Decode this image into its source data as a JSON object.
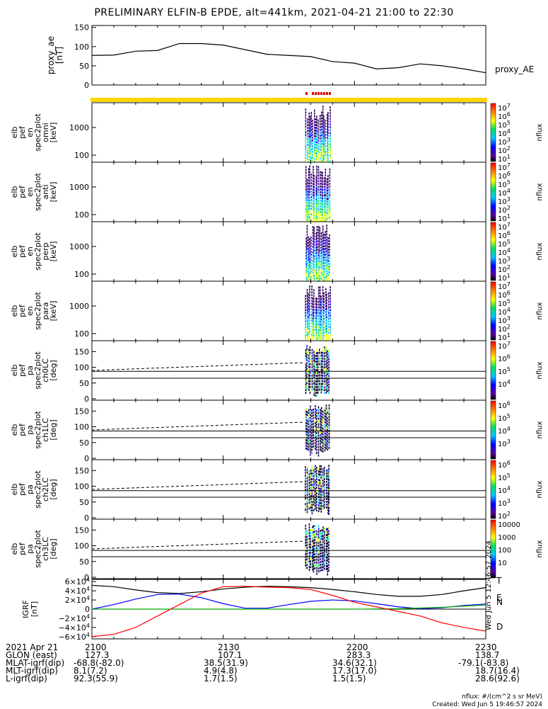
{
  "title": "PRELIMINARY ELFIN-B EPDE, alt=441km, 2021-04-21 21:00 to 22:30",
  "chart_data": [
    {
      "type": "line",
      "ylabel": "proxy_ae [nT]",
      "legend": "proxy_AE",
      "yticks": [
        "150",
        "100",
        "50",
        "0"
      ],
      "ylim": [
        0,
        155
      ],
      "xlim": [
        0,
        90
      ],
      "x": [
        0,
        5,
        10,
        15,
        20,
        25,
        30,
        35,
        40,
        45,
        50,
        55,
        60,
        65,
        70,
        75,
        80,
        85,
        90
      ],
      "values": [
        77,
        78,
        88,
        90,
        108,
        108,
        104,
        92,
        80,
        77,
        74,
        61,
        57,
        42,
        45,
        55,
        50,
        42,
        32
      ]
    },
    {
      "type": "heatmap",
      "ylabel": "elb pef en spec2plot omni [keV]",
      "yticks": [
        "1000",
        "100"
      ],
      "zlabel": "nflux",
      "zrange": [
        "10^1",
        "10^7"
      ]
    },
    {
      "type": "heatmap",
      "ylabel": "elb pef en spec2plot anti [keV]",
      "yticks": [
        "1000",
        "100"
      ],
      "zlabel": "nflux",
      "zrange": [
        "10^1",
        "10^7"
      ]
    },
    {
      "type": "heatmap",
      "ylabel": "elb pef en spec2plot perp [keV]",
      "yticks": [
        "1000",
        "100"
      ],
      "zlabel": "nflux",
      "zrange": [
        "10^1",
        "10^7"
      ]
    },
    {
      "type": "heatmap",
      "ylabel": "elb pef en spec2plot para [keV]",
      "yticks": [
        "1000",
        "100"
      ],
      "zlabel": "nflux",
      "zrange": [
        "10^1",
        "10^7"
      ]
    },
    {
      "type": "heatmap",
      "ylabel": "elb pef pa spec2plot ch0LC [deg]",
      "yticks": [
        "150",
        "100",
        "50",
        "0"
      ],
      "zlabel": "nflux"
    },
    {
      "type": "heatmap",
      "ylabel": "elb pef pa spec2plot ch1LC [deg]",
      "yticks": [
        "150",
        "100",
        "50",
        "0"
      ],
      "zlabel": "nflux"
    },
    {
      "type": "heatmap",
      "ylabel": "elb pef pa spec2plot ch2LC [deg]",
      "yticks": [
        "150",
        "100",
        "50",
        "0"
      ],
      "zlabel": "nflux"
    },
    {
      "type": "heatmap",
      "ylabel": "elb pef pa spec2plot ch3LC [deg]",
      "yticks": [
        "150",
        "100",
        "50",
        "0"
      ],
      "zlabel": "nflux"
    },
    {
      "type": "line",
      "ylabel": "IGRF [nT]",
      "yticks": [
        "6×10^4",
        "4×10^4",
        "2×10^4",
        "0",
        "−2×10^4",
        "−4×10^4",
        "−6×10^4"
      ],
      "ylim": [
        -65000,
        65000
      ],
      "xlim": [
        0,
        90
      ],
      "series": [
        {
          "name": "T",
          "color": "#000000",
          "x": [
            0,
            5,
            10,
            15,
            20,
            25,
            30,
            35,
            40,
            45,
            50,
            55,
            60,
            65,
            70,
            75,
            80,
            85,
            90
          ],
          "values": [
            52000,
            49000,
            42000,
            36000,
            34000,
            38000,
            44000,
            48000,
            50000,
            49000,
            47000,
            43000,
            38000,
            32000,
            28000,
            28000,
            32000,
            40000,
            47000
          ]
        },
        {
          "name": "N",
          "color": "#0000ff",
          "x": [
            0,
            5,
            10,
            15,
            20,
            25,
            30,
            35,
            40,
            45,
            50,
            55,
            60,
            65,
            70,
            75,
            80,
            85,
            90
          ],
          "values": [
            0,
            10000,
            22000,
            32000,
            33000,
            25000,
            12000,
            2000,
            2000,
            10000,
            17000,
            20000,
            18000,
            12000,
            5000,
            1000,
            3000,
            8000,
            11000
          ]
        },
        {
          "name": "E",
          "color": "#00aa00",
          "x": [
            0,
            10,
            20,
            30,
            40,
            50,
            60,
            70,
            80,
            90
          ],
          "values": [
            0,
            0,
            0,
            0,
            0,
            0,
            0,
            1000,
            4000,
            9000
          ]
        },
        {
          "name": "D",
          "color": "#ff0000",
          "x": [
            0,
            5,
            10,
            15,
            20,
            25,
            30,
            35,
            40,
            45,
            50,
            55,
            60,
            65,
            70,
            75,
            80,
            85,
            90
          ],
          "values": [
            -60000,
            -55000,
            -40000,
            -15000,
            10000,
            35000,
            49000,
            50000,
            48000,
            47000,
            43000,
            30000,
            15000,
            5000,
            -5000,
            -15000,
            -30000,
            -40000,
            -48000
          ]
        }
      ]
    }
  ],
  "colorbars": [
    {
      "labels": [
        "10^7",
        "10^6",
        "10^5",
        "10^4",
        "10^3",
        "10^2",
        "10^1"
      ],
      "unit": "nflux"
    },
    {
      "labels": [
        "10^7",
        "10^6",
        "10^5",
        "10^4",
        "10^3",
        "10^2",
        "10^1"
      ],
      "unit": "nflux"
    },
    {
      "labels": [
        "10^7",
        "10^6",
        "10^5",
        "10^4",
        "10^3",
        "10^2",
        "10^1"
      ],
      "unit": "nflux"
    },
    {
      "labels": [
        "10^7",
        "10^6",
        "10^5",
        "10^4",
        "10^3",
        "10^2",
        "10^1"
      ],
      "unit": "nflux"
    },
    {
      "labels": [
        "10^7",
        "10^6",
        "10^5",
        "10^4"
      ],
      "unit": "nflux"
    },
    {
      "labels": [
        "10^6",
        "10^5",
        "10^4",
        "10^3"
      ],
      "unit": "nflux"
    },
    {
      "labels": [
        "10^6",
        "10^5",
        "10^4",
        "10^3",
        "10^2"
      ],
      "unit": "nflux"
    },
    {
      "labels": [
        "10000",
        "1000",
        "100",
        "10"
      ],
      "unit": "nflux"
    }
  ],
  "xaxis": {
    "ticks": [
      "2100",
      "2130",
      "2200",
      "2230"
    ]
  },
  "footer": {
    "rows": [
      {
        "label": "2021 Apr 21",
        "vals": [
          "2100",
          "2130",
          "2200",
          "2230"
        ]
      },
      {
        "label": "GLON (east)",
        "vals": [
          "127.3",
          "107.1",
          "283.3",
          "138.7"
        ]
      },
      {
        "label": "MLAT-igrf(dip)",
        "vals": [
          "-68.8(-82.0)",
          "38.5(31.9)",
          "34.6(32.1)",
          "-79.1(-83.8)"
        ]
      },
      {
        "label": "MLT-igrf(dip)",
        "vals": [
          "8.1(7.2)",
          "4.9(4.8)",
          "17.3(17.0)",
          "18.7(16.4)"
        ]
      },
      {
        "label": "L-igrf(dip)",
        "vals": [
          "92.3(55.9)",
          "1.7(1.5)",
          "1.5(1.5)",
          "28.6(92.6)"
        ]
      }
    ],
    "units": "nflux: #/(cm^2 s sr MeV)",
    "created": "Created: Wed Jun  5 19:46:57 2024",
    "sidenote": "Wed Jun  5 12:46:57 2024"
  },
  "igrf_labels": [
    "T",
    "N",
    "E",
    "D"
  ]
}
